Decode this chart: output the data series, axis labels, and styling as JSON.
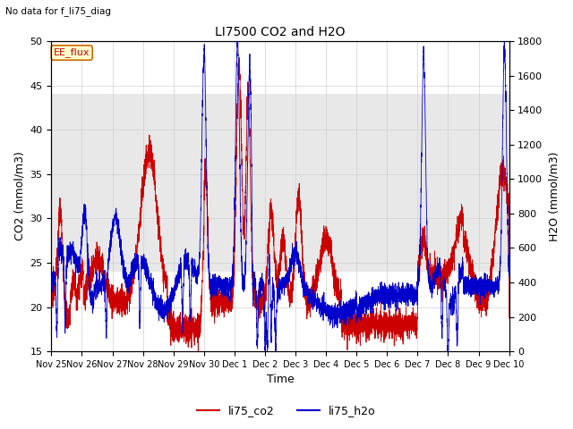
{
  "title": "LI7500 CO2 and H2O",
  "subtitle": "No data for f_li75_diag",
  "xlabel": "Time",
  "ylabel_left": "CO2 (mmol/m3)",
  "ylabel_right": "H2O (mmol/m3)",
  "ylim_left": [
    15,
    50
  ],
  "ylim_right": [
    0,
    1800
  ],
  "xlim": [
    0,
    15
  ],
  "xtick_labels": [
    "Nov 25",
    "Nov 26",
    "Nov 27",
    "Nov 28",
    "Nov 29",
    "Nov 30",
    "Dec 1",
    "Dec 2",
    "Dec 3",
    "Dec 4",
    "Dec 5",
    "Dec 6",
    "Dec 7",
    "Dec 8",
    "Dec 9",
    "Dec 10"
  ],
  "color_co2": "#cc0000",
  "color_h2o": "#0000cc",
  "legend_labels": [
    "li75_co2",
    "li75_h2o"
  ],
  "annotation_box": "EE_flux",
  "shade_ymin": 24,
  "shade_ymax": 44,
  "background_color": "#ffffff",
  "grid_color": "#d0d0d0",
  "title_fontsize": 10,
  "axis_fontsize": 9,
  "tick_fontsize": 8,
  "xtick_fontsize": 7
}
